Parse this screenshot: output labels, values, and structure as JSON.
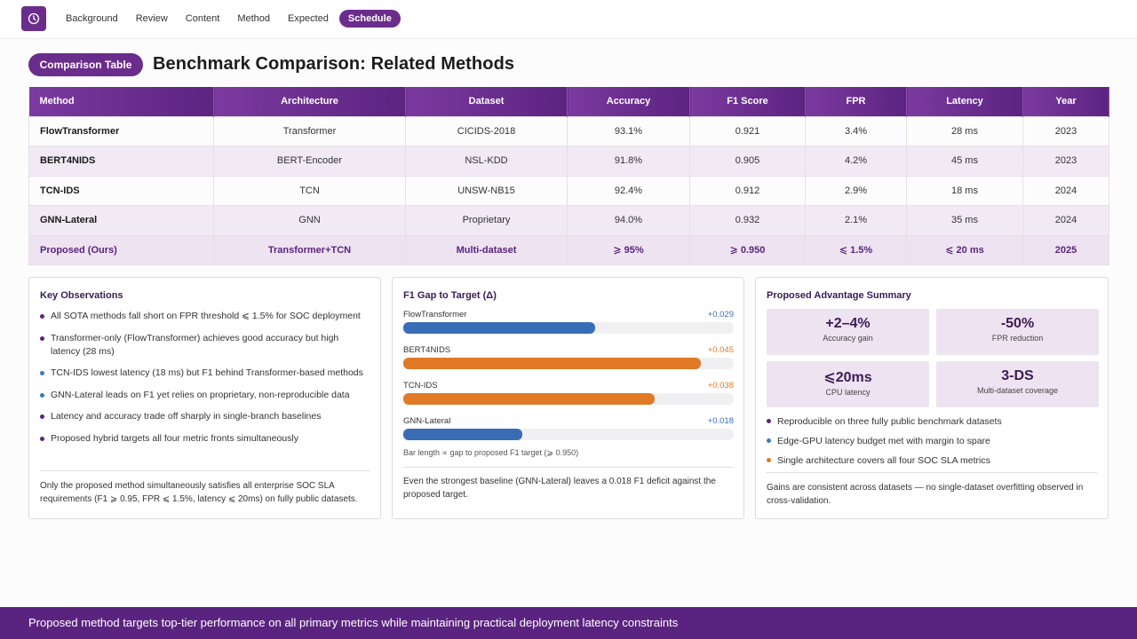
{
  "nav": {
    "items": [
      "Background",
      "Review",
      "Content",
      "Method",
      "Expected",
      "Schedule"
    ],
    "active": "Schedule"
  },
  "header": {
    "pill": "Comparison Table",
    "title": "Benchmark Comparison: Related Methods"
  },
  "table": {
    "columns": [
      "Method",
      "Architecture",
      "Dataset",
      "Accuracy",
      "F1 Score",
      "FPR",
      "Latency",
      "Year"
    ],
    "rows": [
      [
        "FlowTransformer",
        "Transformer",
        "CICIDS-2018",
        "93.1%",
        "0.921",
        "3.4%",
        "28 ms",
        "2023"
      ],
      [
        "BERT4NIDS",
        "BERT-Encoder",
        "NSL-KDD",
        "91.8%",
        "0.905",
        "4.2%",
        "45 ms",
        "2023"
      ],
      [
        "TCN-IDS",
        "TCN",
        "UNSW-NB15",
        "92.4%",
        "0.912",
        "2.9%",
        "18 ms",
        "2024"
      ],
      [
        "GNN-Lateral",
        "GNN",
        "Proprietary",
        "94.0%",
        "0.932",
        "2.1%",
        "35 ms",
        "2024"
      ],
      [
        "Proposed (Ours)",
        "Transformer+TCN",
        "Multi-dataset",
        "⩾ 95%",
        "⩾ 0.950",
        "⩽ 1.5%",
        "⩽ 20 ms",
        "2025"
      ]
    ]
  },
  "observations": {
    "title": "Key Observations",
    "items": [
      "All SOTA methods fall short on FPR threshold ⩽ 1.5% for SOC deployment",
      "Transformer-only (FlowTransformer) achieves good accuracy but high latency (28 ms)",
      "TCN-IDS lowest latency (18 ms) but F1 behind Transformer-based methods",
      "GNN-Lateral leads on F1 yet relies on proprietary, non-reproducible data",
      "Latency and accuracy trade off sharply in single-branch baselines",
      "Proposed hybrid targets all four metric fronts simultaneously"
    ],
    "dot_colors": [
      "#5b2380",
      "#5b2380",
      "#3a78c4",
      "#3a78c4",
      "#5b2380",
      "#5b2380"
    ],
    "footer": "Only the proposed method simultaneously satisfies all enterprise SOC SLA requirements (F1 ⩾ 0.95, FPR ⩽ 1.5%, latency ⩽ 20ms) on fully public datasets."
  },
  "f1gap": {
    "title": "F1 Gap to Target (Δ)",
    "bars": [
      {
        "label": "FlowTransformer",
        "value_text": "+0.029",
        "gap": 0.029,
        "color": "#3a6db5"
      },
      {
        "label": "BERT4NIDS",
        "value_text": "+0.045",
        "gap": 0.045,
        "color": "#e07a26"
      },
      {
        "label": "TCN-IDS",
        "value_text": "+0.038",
        "gap": 0.038,
        "color": "#e07a26"
      },
      {
        "label": "GNN-Lateral",
        "value_text": "+0.018",
        "gap": 0.018,
        "color": "#3a6db5"
      }
    ],
    "note": "Bar length ∝ gap to proposed F1 target (⩾ 0.950)",
    "footer": "Even the strongest baseline (GNN-Lateral) leaves a 0.018 F1 deficit against the proposed target."
  },
  "advantage": {
    "title": "Proposed Advantage Summary",
    "stats": [
      {
        "value": "+2–4%",
        "label": "Accuracy gain"
      },
      {
        "value": "-50%",
        "label": "FPR reduction"
      },
      {
        "value": "⩽20ms",
        "label": "CPU latency"
      },
      {
        "value": "3-DS",
        "label": "Multi-dataset coverage"
      }
    ],
    "items": [
      "Reproducible on three fully public benchmark datasets",
      "Edge-GPU latency budget met with margin to spare",
      "Single architecture covers all four SOC SLA metrics"
    ],
    "dot_colors": [
      "#5b2380",
      "#3a78c4",
      "#e07a26"
    ],
    "footer": "Gains are consistent across datasets — no single-dataset overfitting observed in cross-validation."
  },
  "footer_banner": "Proposed method targets top-tier performance on all primary metrics while maintaining practical deployment latency constraints"
}
